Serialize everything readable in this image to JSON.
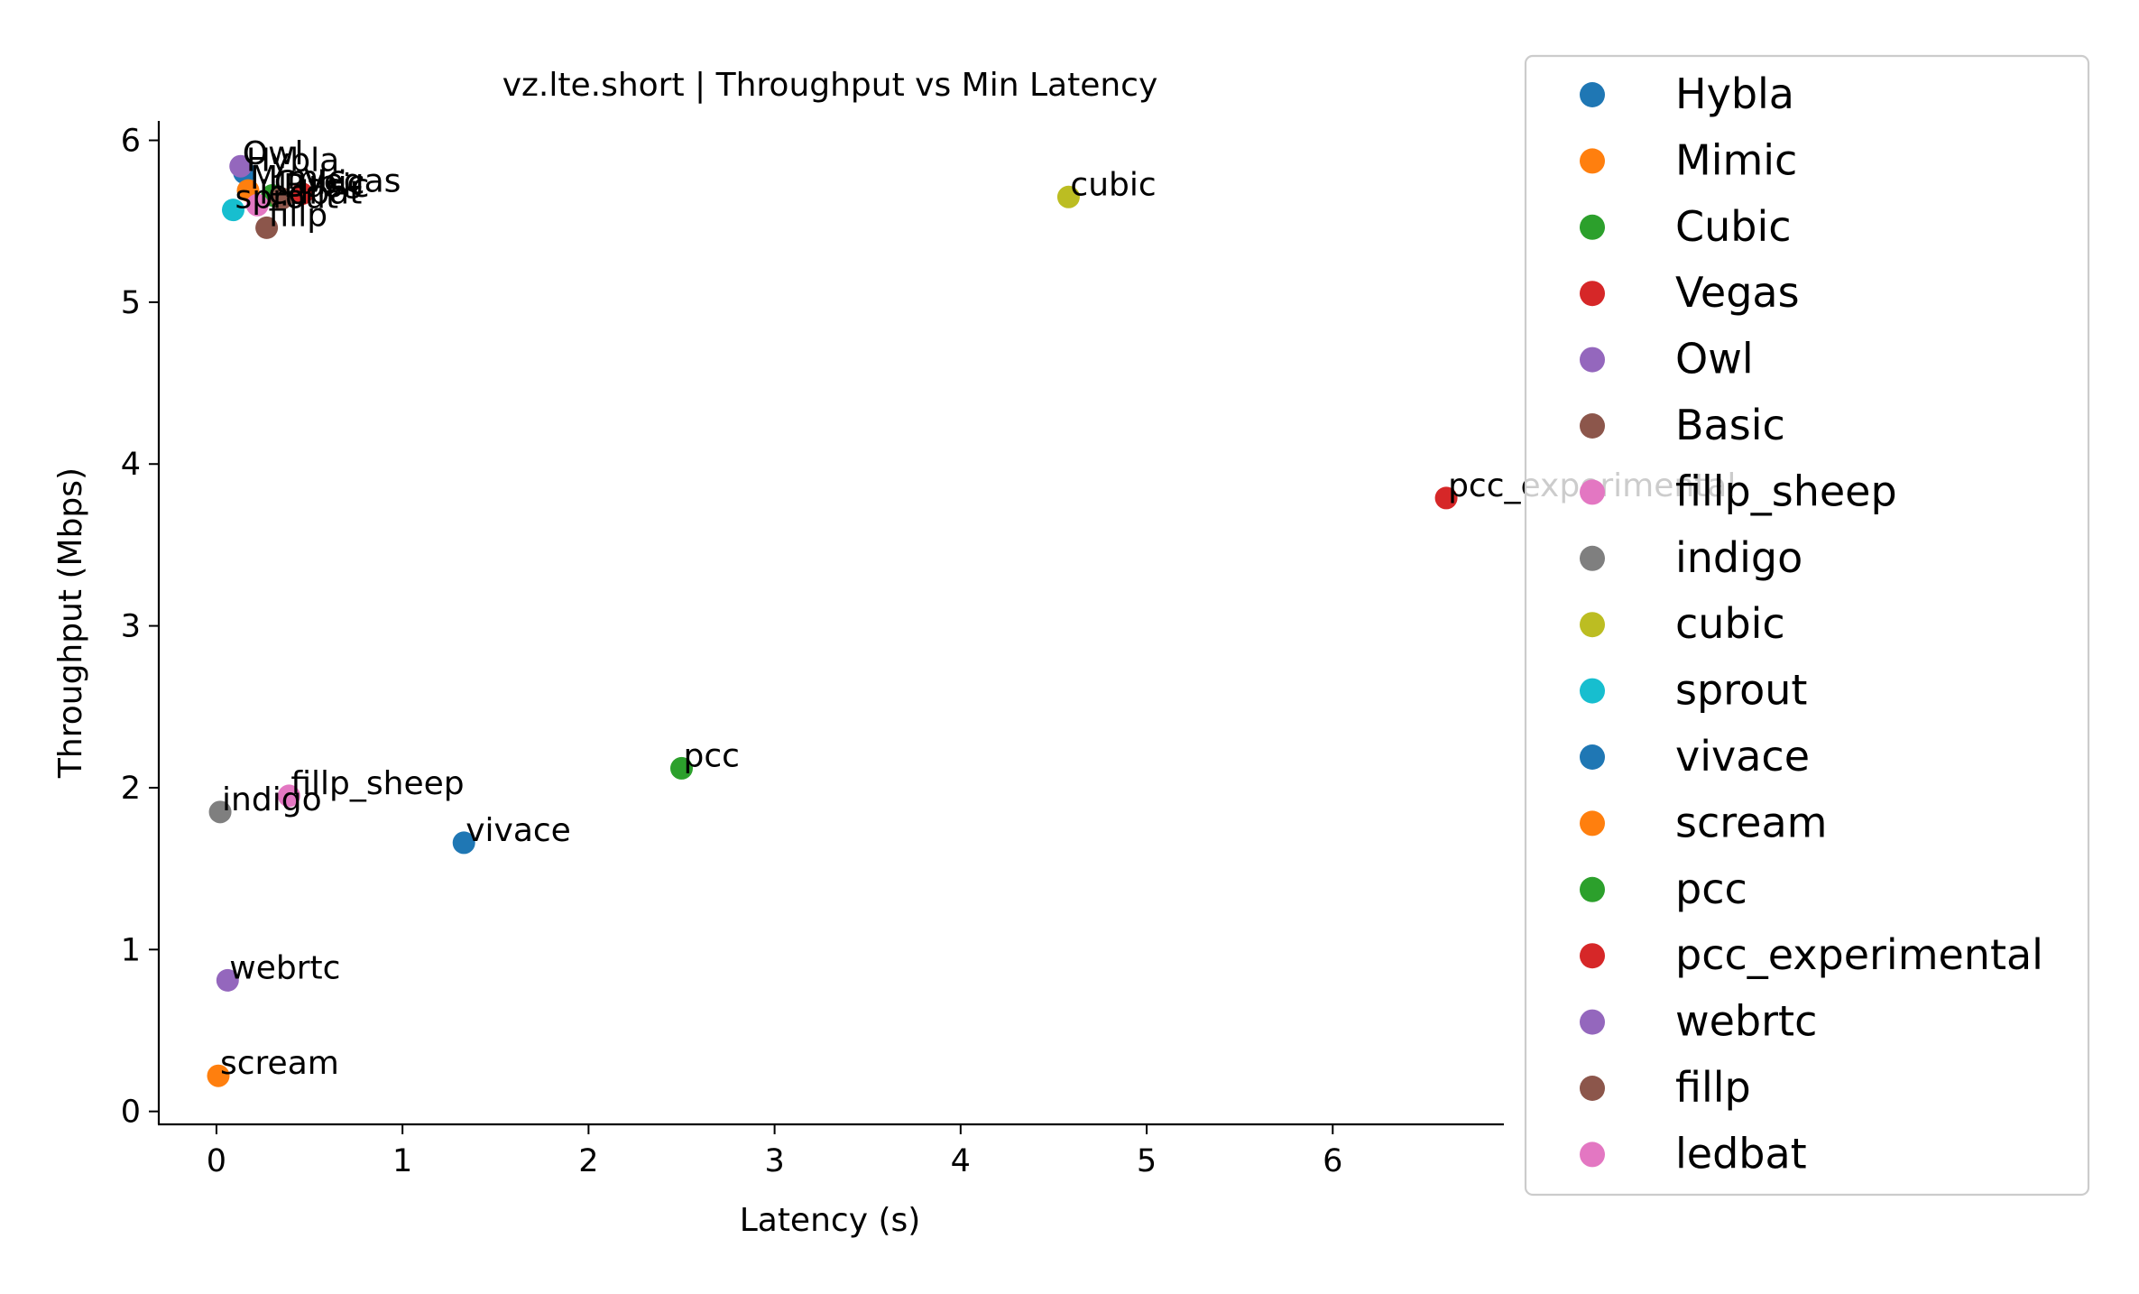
{
  "chart_data": {
    "type": "scatter",
    "title": "vz.lte.short | Throughput vs Min Latency",
    "xlabel": "Latency (s)",
    "ylabel": "Throughput (Mbps)",
    "xlim": [
      -0.31,
      6.92
    ],
    "ylim": [
      -0.08,
      6.12
    ],
    "xticks": [
      0,
      1,
      2,
      3,
      4,
      5,
      6
    ],
    "yticks": [
      0,
      1,
      2,
      3,
      4,
      5,
      6
    ],
    "grid": false,
    "legend_position": "outside-right",
    "series": [
      {
        "name": "Hybla",
        "color": "#1f77b4",
        "x": 0.15,
        "y": 5.8,
        "label": "Hybla"
      },
      {
        "name": "Mimic",
        "color": "#ff7f0e",
        "x": 0.17,
        "y": 5.69,
        "label": "Mimic"
      },
      {
        "name": "Cubic",
        "color": "#2ca02c",
        "x": 0.3,
        "y": 5.66,
        "label": "Cubic"
      },
      {
        "name": "Vegas",
        "color": "#d62728",
        "x": 0.46,
        "y": 5.67,
        "label": "Vegas"
      },
      {
        "name": "Owl",
        "color": "#9467bd",
        "x": 0.13,
        "y": 5.84,
        "label": "Owl"
      },
      {
        "name": "Basic",
        "color": "#8c564b",
        "x": 0.35,
        "y": 5.64,
        "label": "Basic"
      },
      {
        "name": "fillp_sheep",
        "color": "#e377c2",
        "x": 0.39,
        "y": 1.95,
        "label": "fillp_sheep"
      },
      {
        "name": "indigo",
        "color": "#7f7f7f",
        "x": 0.02,
        "y": 1.85,
        "label": "indigo"
      },
      {
        "name": "cubic",
        "color": "#bcbd22",
        "x": 4.58,
        "y": 5.65,
        "label": "cubic"
      },
      {
        "name": "sprout",
        "color": "#17becf",
        "x": 0.09,
        "y": 5.57,
        "label": "sprout"
      },
      {
        "name": "vivace",
        "color": "#1f77b4",
        "x": 1.33,
        "y": 1.66,
        "label": "vivace"
      },
      {
        "name": "scream",
        "color": "#ff7f0e",
        "x": 0.01,
        "y": 0.22,
        "label": "scream"
      },
      {
        "name": "pcc",
        "color": "#2ca02c",
        "x": 2.5,
        "y": 2.12,
        "label": "pcc"
      },
      {
        "name": "pcc_experimental",
        "color": "#d62728",
        "x": 6.61,
        "y": 3.79,
        "label": "pcc_experimental"
      },
      {
        "name": "webrtc",
        "color": "#9467bd",
        "x": 0.06,
        "y": 0.81,
        "label": "webrtc"
      },
      {
        "name": "fillp",
        "color": "#8c564b",
        "x": 0.27,
        "y": 5.46,
        "label": "fillp"
      },
      {
        "name": "ledbat",
        "color": "#e377c2",
        "x": 0.22,
        "y": 5.6,
        "label": "ledbat"
      }
    ]
  }
}
